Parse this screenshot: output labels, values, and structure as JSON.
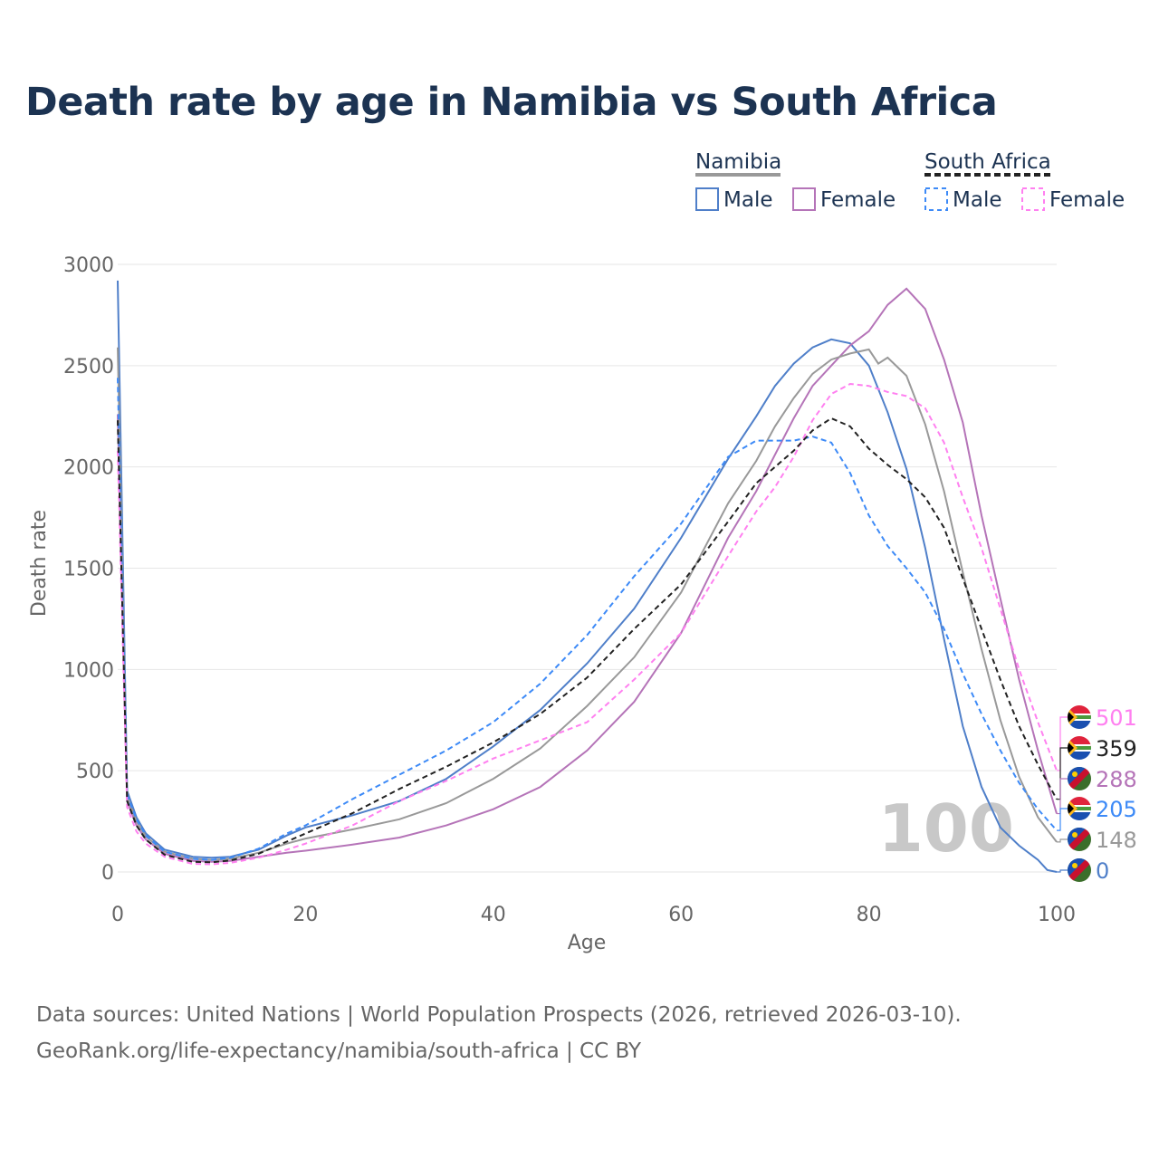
{
  "chart_data": {
    "type": "line",
    "title": "Death rate by age in Namibia vs South Africa",
    "xlabel": "Age",
    "ylabel": "Death rate",
    "xlim": [
      0,
      100
    ],
    "ylim": [
      0,
      3000
    ],
    "xticks": [
      0,
      20,
      40,
      60,
      80,
      100
    ],
    "yticks": [
      0,
      500,
      1000,
      1500,
      2000,
      2500,
      3000
    ],
    "grid": true,
    "legend": {
      "placement": "top-right",
      "groups": [
        {
          "name": "Namibia",
          "items": [
            "Male",
            "Female"
          ]
        },
        {
          "name": "South Africa",
          "items": [
            "Male",
            "Female"
          ]
        }
      ]
    },
    "annotation": "100",
    "series": [
      {
        "name": "Namibia Male",
        "country": "Namibia",
        "color": "#4f7fc9",
        "dash": false,
        "end_label": "0",
        "points": [
          [
            0,
            2920
          ],
          [
            1,
            400
          ],
          [
            2,
            270
          ],
          [
            3,
            190
          ],
          [
            5,
            110
          ],
          [
            8,
            75
          ],
          [
            10,
            70
          ],
          [
            12,
            75
          ],
          [
            15,
            110
          ],
          [
            18,
            180
          ],
          [
            20,
            220
          ],
          [
            25,
            280
          ],
          [
            30,
            350
          ],
          [
            35,
            460
          ],
          [
            40,
            620
          ],
          [
            45,
            800
          ],
          [
            50,
            1030
          ],
          [
            55,
            1300
          ],
          [
            60,
            1650
          ],
          [
            65,
            2040
          ],
          [
            68,
            2250
          ],
          [
            70,
            2400
          ],
          [
            72,
            2510
          ],
          [
            74,
            2590
          ],
          [
            76,
            2630
          ],
          [
            78,
            2610
          ],
          [
            80,
            2500
          ],
          [
            82,
            2270
          ],
          [
            84,
            1990
          ],
          [
            86,
            1600
          ],
          [
            88,
            1150
          ],
          [
            90,
            720
          ],
          [
            92,
            420
          ],
          [
            94,
            220
          ],
          [
            96,
            130
          ],
          [
            98,
            60
          ],
          [
            99,
            10
          ],
          [
            100,
            0
          ]
        ]
      },
      {
        "name": "Namibia Female",
        "country": "Namibia",
        "color": "#b574b8",
        "dash": false,
        "end_label": "288",
        "points": [
          [
            0,
            2260
          ],
          [
            1,
            350
          ],
          [
            2,
            230
          ],
          [
            3,
            160
          ],
          [
            5,
            90
          ],
          [
            8,
            55
          ],
          [
            10,
            50
          ],
          [
            12,
            55
          ],
          [
            15,
            75
          ],
          [
            18,
            95
          ],
          [
            20,
            105
          ],
          [
            25,
            135
          ],
          [
            30,
            170
          ],
          [
            35,
            230
          ],
          [
            40,
            310
          ],
          [
            45,
            420
          ],
          [
            50,
            600
          ],
          [
            55,
            840
          ],
          [
            60,
            1180
          ],
          [
            65,
            1650
          ],
          [
            68,
            1880
          ],
          [
            70,
            2060
          ],
          [
            72,
            2240
          ],
          [
            74,
            2400
          ],
          [
            76,
            2500
          ],
          [
            78,
            2600
          ],
          [
            80,
            2670
          ],
          [
            82,
            2800
          ],
          [
            84,
            2880
          ],
          [
            86,
            2780
          ],
          [
            88,
            2530
          ],
          [
            90,
            2220
          ],
          [
            92,
            1760
          ],
          [
            94,
            1350
          ],
          [
            96,
            950
          ],
          [
            98,
            600
          ],
          [
            100,
            288
          ]
        ]
      },
      {
        "name": "Namibia",
        "country": "Namibia",
        "color": "#999999",
        "dash": false,
        "end_label": "148",
        "points": [
          [
            0,
            2590
          ],
          [
            1,
            370
          ],
          [
            2,
            250
          ],
          [
            3,
            175
          ],
          [
            5,
            100
          ],
          [
            8,
            65
          ],
          [
            10,
            60
          ],
          [
            12,
            65
          ],
          [
            15,
            95
          ],
          [
            18,
            140
          ],
          [
            20,
            165
          ],
          [
            25,
            210
          ],
          [
            30,
            260
          ],
          [
            35,
            340
          ],
          [
            40,
            460
          ],
          [
            45,
            610
          ],
          [
            50,
            820
          ],
          [
            55,
            1060
          ],
          [
            60,
            1380
          ],
          [
            65,
            1820
          ],
          [
            68,
            2030
          ],
          [
            70,
            2200
          ],
          [
            72,
            2340
          ],
          [
            74,
            2460
          ],
          [
            76,
            2530
          ],
          [
            78,
            2560
          ],
          [
            80,
            2580
          ],
          [
            81,
            2510
          ],
          [
            82,
            2540
          ],
          [
            84,
            2450
          ],
          [
            86,
            2210
          ],
          [
            88,
            1880
          ],
          [
            90,
            1480
          ],
          [
            92,
            1100
          ],
          [
            94,
            750
          ],
          [
            96,
            470
          ],
          [
            98,
            270
          ],
          [
            100,
            148
          ]
        ]
      },
      {
        "name": "South Africa Male",
        "country": "South Africa",
        "color": "#3d8af7",
        "dash": true,
        "end_label": "205",
        "points": [
          [
            0,
            2440
          ],
          [
            1,
            380
          ],
          [
            2,
            260
          ],
          [
            3,
            180
          ],
          [
            5,
            100
          ],
          [
            8,
            65
          ],
          [
            10,
            60
          ],
          [
            12,
            70
          ],
          [
            15,
            115
          ],
          [
            18,
            190
          ],
          [
            20,
            230
          ],
          [
            25,
            360
          ],
          [
            30,
            480
          ],
          [
            35,
            600
          ],
          [
            40,
            740
          ],
          [
            45,
            930
          ],
          [
            50,
            1170
          ],
          [
            55,
            1460
          ],
          [
            60,
            1720
          ],
          [
            65,
            2050
          ],
          [
            68,
            2130
          ],
          [
            70,
            2130
          ],
          [
            72,
            2130
          ],
          [
            74,
            2150
          ],
          [
            76,
            2120
          ],
          [
            78,
            1970
          ],
          [
            80,
            1760
          ],
          [
            82,
            1610
          ],
          [
            84,
            1500
          ],
          [
            86,
            1380
          ],
          [
            88,
            1200
          ],
          [
            90,
            980
          ],
          [
            92,
            780
          ],
          [
            94,
            600
          ],
          [
            96,
            440
          ],
          [
            98,
            310
          ],
          [
            100,
            205
          ]
        ]
      },
      {
        "name": "South Africa Female",
        "country": "South Africa",
        "color": "#ff80f0",
        "dash": true,
        "end_label": "501",
        "points": [
          [
            0,
            2080
          ],
          [
            1,
            320
          ],
          [
            2,
            200
          ],
          [
            3,
            140
          ],
          [
            5,
            75
          ],
          [
            8,
            40
          ],
          [
            10,
            38
          ],
          [
            12,
            45
          ],
          [
            15,
            70
          ],
          [
            18,
            110
          ],
          [
            20,
            140
          ],
          [
            25,
            230
          ],
          [
            30,
            350
          ],
          [
            35,
            450
          ],
          [
            40,
            560
          ],
          [
            45,
            650
          ],
          [
            50,
            740
          ],
          [
            55,
            950
          ],
          [
            60,
            1180
          ],
          [
            65,
            1560
          ],
          [
            68,
            1780
          ],
          [
            70,
            1900
          ],
          [
            72,
            2050
          ],
          [
            74,
            2230
          ],
          [
            76,
            2360
          ],
          [
            78,
            2410
          ],
          [
            80,
            2400
          ],
          [
            82,
            2370
          ],
          [
            84,
            2350
          ],
          [
            86,
            2290
          ],
          [
            88,
            2120
          ],
          [
            90,
            1850
          ],
          [
            92,
            1600
          ],
          [
            94,
            1300
          ],
          [
            96,
            1000
          ],
          [
            98,
            740
          ],
          [
            100,
            501
          ]
        ]
      },
      {
        "name": "South Africa",
        "country": "South Africa",
        "color": "#222222",
        "dash": true,
        "end_label": "359",
        "points": [
          [
            0,
            2230
          ],
          [
            1,
            350
          ],
          [
            2,
            230
          ],
          [
            3,
            160
          ],
          [
            5,
            85
          ],
          [
            8,
            50
          ],
          [
            10,
            48
          ],
          [
            12,
            57
          ],
          [
            15,
            90
          ],
          [
            18,
            150
          ],
          [
            20,
            190
          ],
          [
            25,
            290
          ],
          [
            30,
            410
          ],
          [
            35,
            520
          ],
          [
            40,
            640
          ],
          [
            45,
            780
          ],
          [
            50,
            960
          ],
          [
            55,
            1200
          ],
          [
            60,
            1420
          ],
          [
            65,
            1730
          ],
          [
            68,
            1920
          ],
          [
            70,
            2000
          ],
          [
            72,
            2080
          ],
          [
            74,
            2180
          ],
          [
            76,
            2240
          ],
          [
            78,
            2200
          ],
          [
            80,
            2090
          ],
          [
            82,
            2010
          ],
          [
            84,
            1940
          ],
          [
            86,
            1850
          ],
          [
            88,
            1700
          ],
          [
            90,
            1450
          ],
          [
            92,
            1200
          ],
          [
            94,
            950
          ],
          [
            96,
            720
          ],
          [
            98,
            530
          ],
          [
            100,
            359
          ]
        ]
      }
    ]
  },
  "sources": {
    "line1": "Data sources: United Nations | World Population Prospects (2026, retrieved 2026-03-10).",
    "line2": "GeoRank.org/life-expectancy/namibia/south-africa | CC BY"
  }
}
